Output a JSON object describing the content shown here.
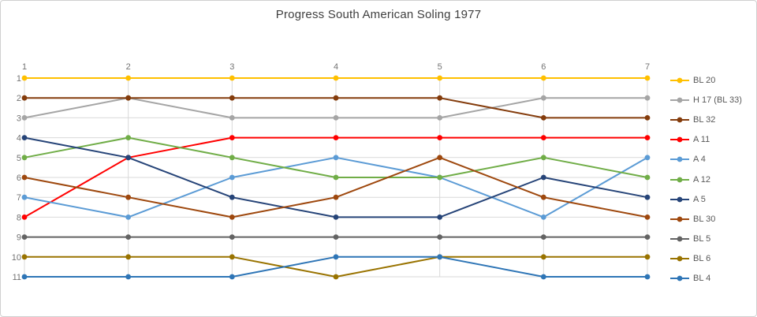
{
  "chart_data": {
    "type": "line",
    "subtype": "bump-chart",
    "title": "Progress South American Soling 1977",
    "xlabel": "",
    "ylabel": "",
    "x_ticks": [
      "1",
      "2",
      "3",
      "4",
      "5",
      "6",
      "7"
    ],
    "y_ticks": [
      "1",
      "2",
      "3",
      "4",
      "5",
      "6",
      "7",
      "8",
      "9",
      "10",
      "11"
    ],
    "y_axis_inverted": true,
    "ylim": [
      1,
      11
    ],
    "grid": true,
    "legend_position": "right",
    "categories": [
      1,
      2,
      3,
      4,
      5,
      6,
      7
    ],
    "series": [
      {
        "name": "BL 20",
        "color": "#FFC000",
        "values": [
          1,
          1,
          1,
          1,
          1,
          1,
          1
        ]
      },
      {
        "name": "H 17 (BL 33)",
        "color": "#A5A5A5",
        "values": [
          3,
          2,
          3,
          3,
          3,
          2,
          2
        ]
      },
      {
        "name": "BL 32",
        "color": "#843C0C",
        "values": [
          2,
          2,
          2,
          2,
          2,
          3,
          3
        ]
      },
      {
        "name": "A 11",
        "color": "#FF0000",
        "values": [
          8,
          5,
          4,
          4,
          4,
          4,
          4
        ]
      },
      {
        "name": "A 4",
        "color": "#5B9BD5",
        "values": [
          7,
          8,
          6,
          5,
          6,
          8,
          5
        ]
      },
      {
        "name": "A 12",
        "color": "#70AD47",
        "values": [
          5,
          4,
          5,
          6,
          6,
          5,
          6
        ]
      },
      {
        "name": "A 5",
        "color": "#264478",
        "values": [
          4,
          5,
          7,
          8,
          8,
          6,
          7
        ]
      },
      {
        "name": "BL 30",
        "color": "#9E480E",
        "values": [
          6,
          7,
          8,
          7,
          5,
          7,
          8
        ]
      },
      {
        "name": "BL 5",
        "color": "#636363",
        "values": [
          9,
          9,
          9,
          9,
          9,
          9,
          9
        ]
      },
      {
        "name": "BL 6",
        "color": "#997300",
        "values": [
          10,
          10,
          10,
          11,
          10,
          10,
          10
        ]
      },
      {
        "name": "BL 4",
        "color": "#2E75B6",
        "values": [
          11,
          11,
          11,
          10,
          10,
          11,
          11
        ]
      }
    ],
    "style": {
      "gridline_color": "#D9D9D9",
      "tick_label_color": "#737373",
      "legend_text_color": "#595959",
      "title_color": "#3F3F3F"
    }
  }
}
